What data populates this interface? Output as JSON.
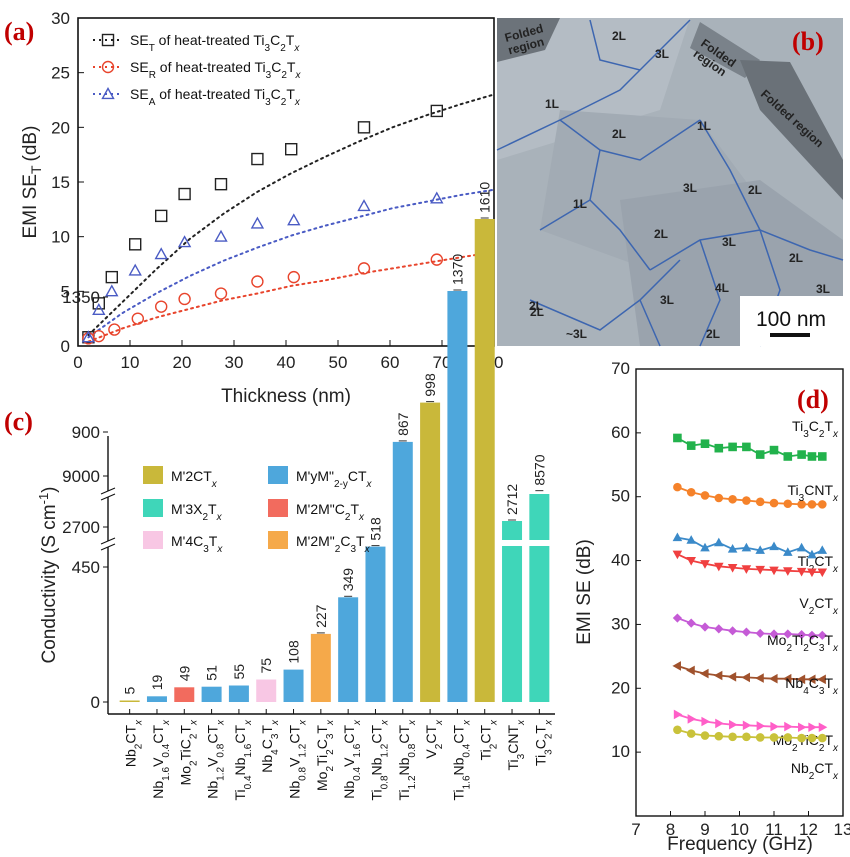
{
  "panels": {
    "a": "(a)",
    "b": "(b)",
    "c": "(c)",
    "d": "(d)"
  },
  "chart_data": [
    {
      "panel": "a",
      "type": "scatter",
      "xlabel": "Thickness (nm)",
      "ylabel": "EMI SE",
      "ylabel_sub": "T",
      "ylabel_unit": "(dB)",
      "xlim": [
        0,
        80
      ],
      "ylim": [
        0,
        30
      ],
      "xticks": [
        0,
        10,
        20,
        30,
        40,
        50,
        60,
        70,
        80
      ],
      "yticks": [
        0,
        5,
        10,
        15,
        20,
        25,
        30
      ],
      "legend_position": "top-left",
      "series": [
        {
          "name": "SE_T of heat-treated Ti3C2Tx",
          "legend_prefix": "SE",
          "legend_sub": "T",
          "legend_mid": " of heat-treated Ti",
          "marker": "square",
          "color": "#222222",
          "x": [
            2,
            4,
            6.5,
            11,
            16,
            20.5,
            27.5,
            34.5,
            41,
            55,
            69
          ],
          "y": [
            0.8,
            3.9,
            6.3,
            9.3,
            11.9,
            13.9,
            14.8,
            17.1,
            18.0,
            20.0,
            21.5
          ],
          "fit_y": [
            1.0,
            4.0,
            7.0,
            9.8,
            12.1,
            14.1,
            15.8,
            17.3,
            18.7,
            20.0,
            21.1,
            22.1,
            23.0
          ]
        },
        {
          "name": "SE_R of heat-treated Ti3C2Tx",
          "legend_prefix": "SE",
          "legend_sub": "R",
          "legend_mid": " of heat-treated Ti",
          "marker": "circle",
          "color": "#e8442c",
          "x": [
            2,
            4,
            7,
            11.5,
            16,
            20.5,
            27.5,
            34.5,
            41.5,
            55,
            69
          ],
          "y": [
            0.7,
            0.9,
            1.5,
            2.5,
            3.6,
            4.3,
            4.8,
            5.9,
            6.3,
            7.1,
            7.9
          ],
          "fit_y": [
            0.4,
            1.6,
            2.6,
            3.4,
            4.2,
            4.8,
            5.5,
            6.0,
            6.6,
            7.1,
            7.6,
            8.1,
            8.6
          ]
        },
        {
          "name": "SE_A of heat-treated Ti3C2Tx",
          "legend_prefix": "SE",
          "legend_sub": "A",
          "legend_mid": " of heat-treated Ti",
          "marker": "triangle",
          "color": "#4a5bc4",
          "x": [
            2,
            4,
            6.5,
            11,
            16,
            20.5,
            27.5,
            34.5,
            41.5,
            55,
            69
          ],
          "y": [
            0.8,
            3.3,
            5.0,
            6.9,
            8.4,
            9.5,
            10.0,
            11.2,
            11.5,
            12.8,
            13.5
          ],
          "fit_y": [
            0.8,
            3.0,
            4.8,
            6.4,
            7.8,
            9.0,
            10.1,
            11.0,
            11.8,
            12.6,
            13.2,
            13.8,
            14.3
          ]
        }
      ]
    },
    {
      "panel": "c",
      "type": "bar",
      "ylabel": "Conductivity",
      "ylabel_unit": "(S cm",
      "ylabel_exp": "-1",
      "yticks_lower": [
        0,
        450,
        900,
        1350
      ],
      "ytick_upper1": 2700,
      "ytick_upper2": 9000,
      "legend": [
        {
          "label": "M'2CTx",
          "color": "#c9b83a"
        },
        {
          "label": "M'yM\"2-yCTx",
          "color": "#4ea7dc"
        },
        {
          "label": "M'3X2Tx",
          "color": "#3fd6b9"
        },
        {
          "label": "M'2M\"C2Tx",
          "color": "#f26b5e"
        },
        {
          "label": "M'4C3Tx",
          "color": "#f8c7e4"
        },
        {
          "label": "M'2M\"2C3Tx",
          "color": "#f5a94a"
        }
      ],
      "categories": [
        "Nb2CTx",
        "Nb1.6V0.4CTx",
        "Mo2TiC2Tx",
        "Nb1.2V0.8CTx",
        "Ti0.4Nb1.6CTx",
        "Nb4C3Tx",
        "Nb0.8V1.2CTx",
        "Mo2Ti2C3Tx",
        "Nb0.4V1.6CTx",
        "Ti0.8Nb1.2CTx",
        "Ti1.2Nb0.8CTx",
        "V2CTx",
        "Ti1.6Nb0.4CTx",
        "Ti2CTx",
        "Ti3CNTx",
        "Ti3C2Tx"
      ],
      "values": [
        5,
        19,
        49,
        51,
        55,
        75,
        108,
        227,
        349,
        518,
        867,
        998,
        1370,
        1610,
        2712,
        8570
      ],
      "value_labels": [
        "5",
        "19",
        "49",
        "51",
        "55",
        "75",
        "108",
        "227",
        "349",
        "518",
        "867",
        "998",
        "1370",
        "1610",
        "2712",
        "8570"
      ],
      "colors": [
        "#c9b83a",
        "#4ea7dc",
        "#f26b5e",
        "#4ea7dc",
        "#4ea7dc",
        "#f8c7e4",
        "#4ea7dc",
        "#f5a94a",
        "#4ea7dc",
        "#4ea7dc",
        "#4ea7dc",
        "#c9b83a",
        "#4ea7dc",
        "#c9b83a",
        "#3fd6b9",
        "#3fd6b9"
      ]
    },
    {
      "panel": "d",
      "type": "line",
      "xlabel": "Frequency (GHz)",
      "ylabel": "EMI SE (dB)",
      "xlim": [
        7,
        13
      ],
      "ylim": [
        0,
        70
      ],
      "xticks": [
        7,
        8,
        9,
        10,
        11,
        12,
        13
      ],
      "yticks": [
        10,
        20,
        30,
        40,
        50,
        60,
        70
      ],
      "x": [
        8.2,
        8.6,
        9.0,
        9.4,
        9.8,
        10.2,
        10.6,
        11.0,
        11.4,
        11.8,
        12.1,
        12.4
      ],
      "series": [
        {
          "name": "Ti3C2Tx",
          "marker": "square",
          "color": "#22b24c",
          "values": [
            59.2,
            58.0,
            58.3,
            57.6,
            57.8,
            57.8,
            56.6,
            57.3,
            56.3,
            56.6,
            56.3,
            56.3
          ]
        },
        {
          "name": "Ti3CNTx",
          "marker": "circle",
          "color": "#f5822a",
          "values": [
            51.5,
            50.7,
            50.2,
            49.8,
            49.6,
            49.4,
            49.2,
            49.0,
            48.9,
            48.8,
            48.8,
            48.8
          ]
        },
        {
          "name": "Ti2CTx",
          "marker": "triangle",
          "color": "#3b8ac9",
          "values": [
            43.6,
            43.2,
            42.0,
            42.8,
            41.8,
            42.0,
            41.6,
            42.2,
            41.3,
            42.0,
            40.9,
            41.6
          ]
        },
        {
          "name": "V2CTx",
          "marker": "triangle-down",
          "color": "#f04040",
          "values": [
            41.0,
            40.0,
            39.5,
            39.1,
            38.9,
            38.7,
            38.6,
            38.5,
            38.4,
            38.3,
            38.2,
            38.2
          ]
        },
        {
          "name": "Mo2Ti2C3Tx",
          "marker": "diamond",
          "color": "#c55bd6",
          "values": [
            31.0,
            30.2,
            29.6,
            29.3,
            29.0,
            28.8,
            28.6,
            28.5,
            28.5,
            28.4,
            28.3,
            28.3
          ]
        },
        {
          "name": "Nb4C3Tx",
          "marker": "triangle-left",
          "color": "#a0522d",
          "values": [
            23.5,
            22.8,
            22.3,
            22.0,
            21.8,
            21.7,
            21.6,
            21.5,
            21.5,
            21.4,
            21.4,
            21.4
          ]
        },
        {
          "name": "Mo2TiC2Tx",
          "marker": "triangle-right",
          "color": "#ff5fc8",
          "values": [
            15.9,
            15.2,
            14.8,
            14.5,
            14.3,
            14.2,
            14.1,
            14.0,
            14.0,
            13.9,
            13.9,
            13.9
          ]
        },
        {
          "name": "Nb2CTx",
          "marker": "circle",
          "color": "#c9c23a",
          "values": [
            13.5,
            12.9,
            12.6,
            12.5,
            12.4,
            12.4,
            12.3,
            12.3,
            12.3,
            12.2,
            12.2,
            12.2
          ]
        }
      ]
    }
  ],
  "tem": {
    "labels": [
      "Folded region",
      "Folded region",
      "Folded region",
      "2L",
      "3L",
      "1L",
      "2L",
      "1L",
      "1L",
      "3L",
      "2L",
      "2L",
      "3L",
      "2L",
      "2L",
      "4L",
      "3L",
      "3L",
      "2L",
      "~3L",
      "2L"
    ],
    "scale_bar": "100 nm"
  }
}
